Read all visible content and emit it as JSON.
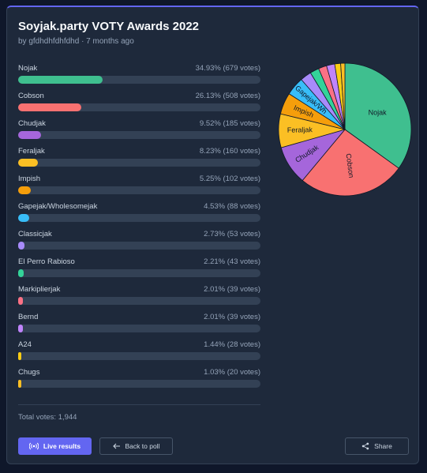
{
  "poll": {
    "title": "Soyjak.party VOTY Awards 2022",
    "byline": "by gfdhdhfdhfdhd · 7 months ago",
    "total_label": "Total votes: 1,944",
    "total_votes": 1944
  },
  "options": [
    {
      "label": "Nojak",
      "stats": "34.93% (679 votes)",
      "percent": 34.93,
      "votes": 679,
      "color": "#3fbf8f"
    },
    {
      "label": "Cobson",
      "stats": "26.13% (508 votes)",
      "percent": 26.13,
      "votes": 508,
      "color": "#f87171"
    },
    {
      "label": "Chudjak",
      "stats": "9.52% (185 votes)",
      "percent": 9.52,
      "votes": 185,
      "color": "#a566db"
    },
    {
      "label": "Feraljak",
      "stats": "8.23% (160 votes)",
      "percent": 8.23,
      "votes": 160,
      "color": "#fbbf24"
    },
    {
      "label": "Impish",
      "stats": "5.25% (102 votes)",
      "percent": 5.25,
      "votes": 102,
      "color": "#f59e0b"
    },
    {
      "label": "Gapejak/Wholesomejak",
      "stats": "4.53% (88 votes)",
      "percent": 4.53,
      "votes": 88,
      "color": "#38bdf8"
    },
    {
      "label": "Classicjak",
      "stats": "2.73% (53 votes)",
      "percent": 2.73,
      "votes": 53,
      "color": "#a78bfa"
    },
    {
      "label": "El Perro Rabioso",
      "stats": "2.21% (43 votes)",
      "percent": 2.21,
      "votes": 43,
      "color": "#34d399"
    },
    {
      "label": "Markiplierjak",
      "stats": "2.01% (39 votes)",
      "percent": 2.01,
      "votes": 39,
      "color": "#fb7185"
    },
    {
      "label": "Bernd",
      "stats": "2.01% (39 votes)",
      "percent": 2.01,
      "votes": 39,
      "color": "#c084fc"
    },
    {
      "label": "A24",
      "stats": "1.44% (28 votes)",
      "percent": 1.44,
      "votes": 28,
      "color": "#facc15"
    },
    {
      "label": "Chugs",
      "stats": "1.03% (20 votes)",
      "percent": 1.03,
      "votes": 20,
      "color": "#fbbf24"
    }
  ],
  "pie_labels": [
    "Nojak",
    "Cobson",
    "Chudjak",
    "Feraljak",
    "Impish",
    "Gapejak/Wh"
  ],
  "buttons": {
    "live": "Live results",
    "back": "Back to poll",
    "share": "Share"
  },
  "icons": {
    "live": "broadcast-icon",
    "back": "arrow-left-icon",
    "share": "share-icon"
  },
  "colors": {
    "accent": "#6366f1",
    "card": "#1e293b",
    "page": "#0f172a",
    "track": "#334155"
  }
}
